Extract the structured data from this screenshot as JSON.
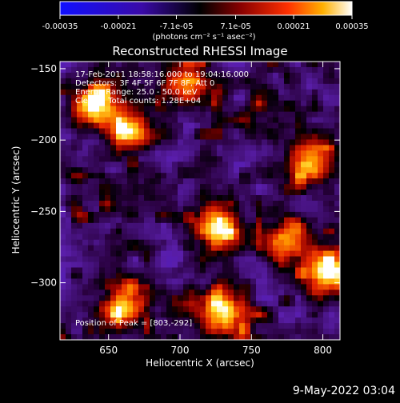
{
  "colorbar": {
    "tick_labels": [
      "-0.00035",
      "-0.00021",
      "-7.1e-05",
      "7.1e-05",
      "0.00021",
      "0.00035"
    ],
    "ticks": [
      -0.00035,
      -0.00021,
      -7.1e-05,
      7.1e-05,
      0.00021,
      0.00035
    ],
    "range": [
      -0.00035,
      0.00035
    ],
    "unit_label": "(photons cm⁻² s⁻¹ asec⁻²)"
  },
  "chart_data": {
    "type": "heatmap",
    "title": "Reconstructed RHESSI Image",
    "xlabel": "Heliocentric X (arcsec)",
    "ylabel": "Heliocentric Y (arcsec)",
    "xlim": [
      616,
      812
    ],
    "ylim": [
      -340,
      -145
    ],
    "x_ticks": [
      650,
      700,
      750,
      800
    ],
    "y_ticks": [
      -150,
      -200,
      -250,
      -300
    ],
    "x_tick_labels": [
      "650",
      "700",
      "750",
      "800"
    ],
    "y_tick_labels": [
      "−150",
      "−200",
      "−250",
      "−300"
    ],
    "colormap": "rhessi-blue-black-red-yellow-white",
    "hot_regions": [
      {
        "x": 727,
        "y": -262,
        "intensity": 1.0
      },
      {
        "x": 803,
        "y": -292,
        "intensity": 1.0
      },
      {
        "x": 730,
        "y": -320,
        "intensity": 0.95
      },
      {
        "x": 640,
        "y": -175,
        "intensity": 0.8
      },
      {
        "x": 665,
        "y": -193,
        "intensity": 0.85
      },
      {
        "x": 660,
        "y": -315,
        "intensity": 0.8
      },
      {
        "x": 790,
        "y": -215,
        "intensity": 0.7
      },
      {
        "x": 705,
        "y": -160,
        "intensity": 0.6
      },
      {
        "x": 775,
        "y": -270,
        "intensity": 0.75
      }
    ]
  },
  "annotations": {
    "line1": "17-Feb-2011 18:58:16.000 to 19:04:16.000",
    "line2": "Detectors: 3F 4F 5F 6F 7F 8F, Att 0",
    "line3": "Energy Range: 25.0 - 50.0 keV",
    "line4": "Clean    Total counts: 1.28E+04",
    "peak": "Position of Peak = [803,-292]"
  },
  "footer": {
    "date": "9-May-2022 03:04"
  }
}
